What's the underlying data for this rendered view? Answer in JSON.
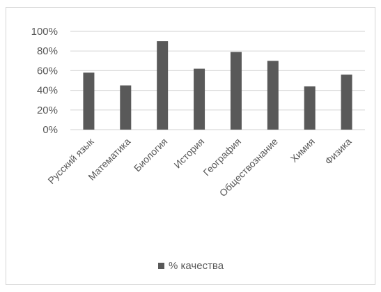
{
  "chart_data": {
    "type": "bar",
    "categories": [
      "Русский язык",
      "Математика",
      "Биология",
      "История",
      "География",
      "Обществознание",
      "Химия",
      "Физика"
    ],
    "series": [
      {
        "name": "% качества",
        "values": [
          58,
          45,
          90,
          62,
          79,
          70,
          44,
          56
        ],
        "color": "#595959"
      }
    ],
    "ylim": [
      0,
      100
    ],
    "yticks": [
      "0%",
      "20%",
      "40%",
      "60%",
      "80%",
      "100%"
    ],
    "ytick_values": [
      0,
      20,
      40,
      60,
      80,
      100
    ],
    "title": "",
    "xlabel": "",
    "ylabel": "",
    "grid": true,
    "legend_position": "bottom",
    "colors": {
      "bar": "#595959",
      "grid": "#d9d9d9",
      "text": "#595959",
      "border": "#d4d4d4"
    }
  }
}
